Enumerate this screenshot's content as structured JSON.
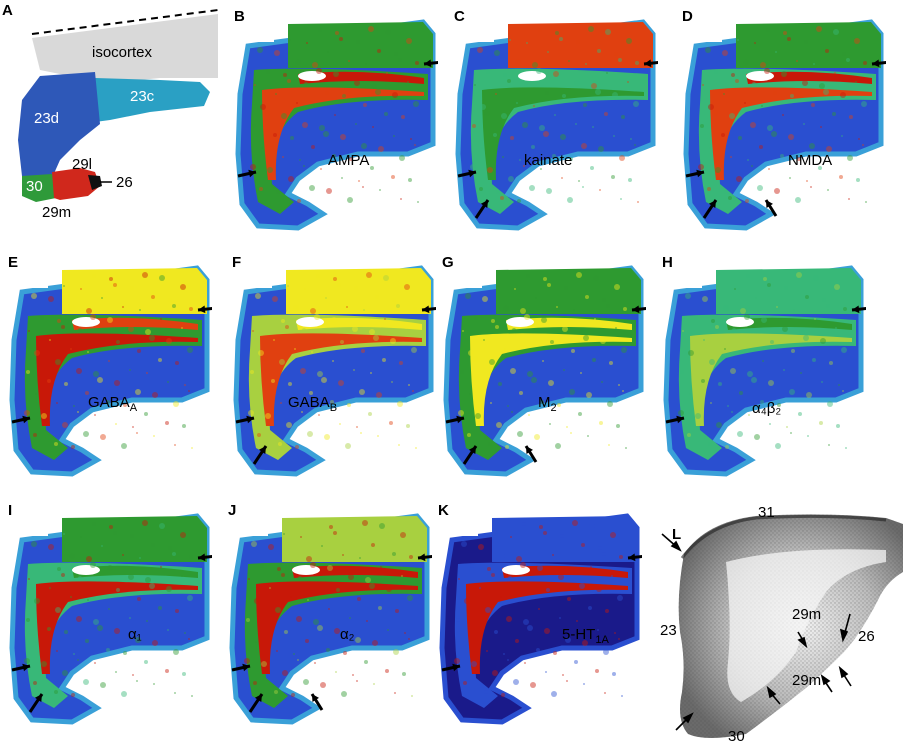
{
  "panel_a": {
    "label": "A",
    "regions": {
      "isocortex": "isocortex",
      "r23c": "23c",
      "r23d": "23d",
      "r30": "30",
      "r29l": "29l",
      "r29m": "29m",
      "r26": "26"
    },
    "colors": {
      "isocortex": "#d9d9d9",
      "r23c": "#2aa0c4",
      "r23d": "#2e58b8",
      "r30": "#2f9a3a",
      "r29": "#d0281c"
    }
  },
  "receptor_panels": [
    {
      "label": "B",
      "receptor": "AMPA"
    },
    {
      "label": "C",
      "receptor": "kainate"
    },
    {
      "label": "D",
      "receptor": "NMDA"
    },
    {
      "label": "E",
      "receptor_main": "GABA",
      "receptor_sub": "A"
    },
    {
      "label": "F",
      "receptor_main": "GABA",
      "receptor_sub": "B"
    },
    {
      "label": "G",
      "receptor_main": "M",
      "receptor_sub": "2"
    },
    {
      "label": "H",
      "receptor": "α₄β₂"
    },
    {
      "label": "I",
      "receptor": "α₁"
    },
    {
      "label": "J",
      "receptor": "α₂"
    },
    {
      "label": "K",
      "receptor_main": "5-HT",
      "receptor_sub": "1A"
    }
  ],
  "panel_l": {
    "label": "L",
    "regions": {
      "r31": "31",
      "r23": "23",
      "r26": "26",
      "r29m_top": "29m",
      "r29m_bottom": "29m",
      "r30": "30"
    }
  },
  "colormap": [
    "#1a1a8a",
    "#2a4fd0",
    "#3aa0d8",
    "#38b878",
    "#2e9a30",
    "#a8d040",
    "#f0e820",
    "#f0a020",
    "#e04010",
    "#c81808"
  ]
}
